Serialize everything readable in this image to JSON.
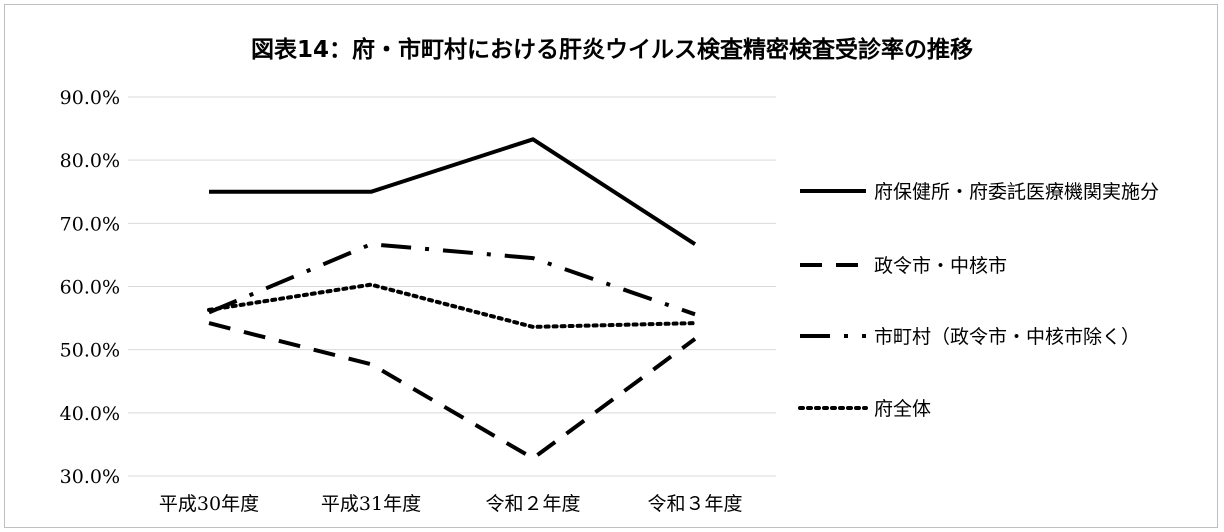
{
  "chart_data": {
    "type": "line",
    "title": "図表14：府・市町村における肝炎ウイルス検査精密検査受診率の推移",
    "categories": [
      "平成30年度",
      "平成31年度",
      "令和２年度",
      "令和３年度"
    ],
    "ylim": [
      30,
      90
    ],
    "yticks": [
      "30.0%",
      "40.0%",
      "50.0%",
      "60.0%",
      "70.0%",
      "80.0%",
      "90.0%"
    ],
    "grid": true,
    "legend_position": "right",
    "series": [
      {
        "name": "府保健所・府委託医療機関実施分",
        "values": [
          75.0,
          75.0,
          83.3,
          66.7
        ],
        "style": "solid"
      },
      {
        "name": "政令市・中核市",
        "values": [
          54.2,
          47.7,
          32.8,
          51.7
        ],
        "style": "dash"
      },
      {
        "name": "市町村（政令市・中核市除く）",
        "values": [
          55.9,
          66.7,
          64.5,
          55.6
        ],
        "style": "dashdot"
      },
      {
        "name": "府全体",
        "values": [
          56.3,
          60.3,
          53.6,
          54.2
        ],
        "style": "dot"
      }
    ],
    "colors": {
      "line": "#000000",
      "grid": "#d9d9d9"
    }
  }
}
